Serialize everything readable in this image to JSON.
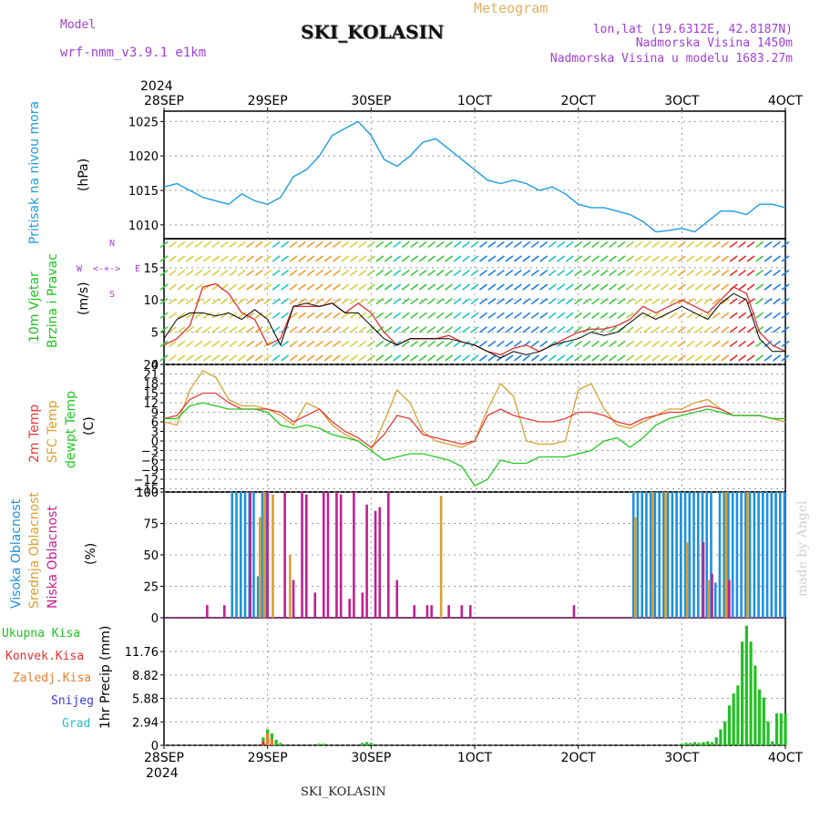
{
  "header": {
    "model_label": "Model",
    "model_name": "wrf-nmm_v3.9.1 e1km",
    "title": "SKI_KOLASIN",
    "meteogram_label": "Meteogram",
    "lonlat": "lon,lat (19.6312E, 42.8187N)",
    "altitude": "Nadmorska Visina 1450m",
    "model_altitude": "Nadmorska Visina u modelu 1683.27m",
    "watermark": "made by Angel",
    "footer": "SKI_KOLASIN"
  },
  "colors": {
    "pressure": "#1e9be0",
    "wind_speed_line": "#000000",
    "gust": "#e03030",
    "temp2m": "#e83a3a",
    "sfc_temp": "#d8a030",
    "dewpt": "#22c822",
    "high_cloud": "#1e90e0",
    "mid_cloud": "#d8a030",
    "low_cloud": "#c02090",
    "total_precip": "#22c022",
    "conv_precip": "#e83030",
    "frz_precip": "#e88030",
    "snow": "#3a3ae0",
    "graupel": "#20c0c0"
  },
  "axis": {
    "year_top": "2024",
    "year_bottom": "2024",
    "date_ticks": [
      "28SEP",
      "29SEP",
      "30SEP",
      "1OCT",
      "2OCT",
      "3OCT",
      "4OCT"
    ]
  },
  "chart_data": [
    {
      "type": "line",
      "panel": "pressure",
      "ylabel_left": "Pritisak na nivou mora",
      "ylabel_unit": "(hPa)",
      "yticks": [
        1010,
        1015,
        1020,
        1025
      ],
      "ylim": [
        1008,
        1026.5
      ],
      "xlim_hours": [
        0,
        144
      ],
      "grid": true,
      "series": [
        {
          "name": "Pritisak na nivou mora",
          "x": [
            0,
            3,
            6,
            9,
            12,
            15,
            18,
            21,
            24,
            27,
            30,
            33,
            36,
            39,
            42,
            45,
            48,
            51,
            54,
            57,
            60,
            63,
            66,
            69,
            72,
            75,
            78,
            81,
            84,
            87,
            90,
            93,
            96,
            99,
            102,
            105,
            108,
            111,
            114,
            117,
            120,
            123,
            126,
            129,
            132,
            135,
            138,
            141,
            144
          ],
          "y": [
            1015.5,
            1016.0,
            1015.0,
            1014.0,
            1013.5,
            1013.0,
            1014.5,
            1013.5,
            1013.0,
            1014.0,
            1017.0,
            1018.0,
            1020.0,
            1023.0,
            1024.0,
            1025.0,
            1023.0,
            1019.5,
            1018.5,
            1020.0,
            1022.0,
            1022.5,
            1021.0,
            1019.5,
            1018.0,
            1016.5,
            1016.0,
            1016.5,
            1016.0,
            1015.0,
            1015.5,
            1014.5,
            1013.0,
            1012.5,
            1012.5,
            1012.0,
            1011.5,
            1010.5,
            1009.0,
            1009.2,
            1009.5,
            1009.0,
            1010.5,
            1012.0,
            1012.0,
            1011.5,
            1013.0,
            1013.0,
            1012.5
          ]
        }
      ]
    },
    {
      "type": "line",
      "panel": "wind",
      "ylabel_left": [
        "10m Vjetar",
        "Brzina i Pravac"
      ],
      "ylabel_unit": "(m/s)",
      "direction_legend": [
        "N",
        "E",
        "S",
        "W"
      ],
      "yticks": [
        0,
        5,
        10,
        15
      ],
      "ylim": [
        0,
        19.5
      ],
      "xlim_hours": [
        0,
        144
      ],
      "grid": true,
      "series": [
        {
          "name": "10m Vjetar",
          "x": [
            0,
            3,
            6,
            9,
            12,
            15,
            18,
            21,
            24,
            27,
            30,
            33,
            36,
            39,
            42,
            45,
            48,
            51,
            54,
            57,
            60,
            63,
            66,
            69,
            72,
            75,
            78,
            81,
            84,
            87,
            90,
            93,
            96,
            99,
            102,
            105,
            108,
            111,
            114,
            117,
            120,
            123,
            126,
            129,
            132,
            135,
            138,
            141,
            144
          ],
          "y": [
            4,
            7,
            8,
            8,
            7.5,
            8,
            7,
            8.5,
            7,
            3,
            9,
            9.5,
            9,
            9.5,
            8,
            8,
            6,
            4,
            3,
            4,
            4,
            4,
            4,
            3.5,
            3,
            2,
            1,
            2,
            1.5,
            2,
            3,
            3.5,
            4,
            5,
            4.5,
            5,
            6.5,
            8,
            7,
            8,
            9,
            8,
            7,
            9.5,
            11,
            10,
            4,
            2,
            2
          ]
        },
        {
          "name": "Brzina i Pravac",
          "x": [
            0,
            3,
            6,
            9,
            12,
            15,
            18,
            21,
            24,
            27,
            30,
            33,
            36,
            39,
            42,
            45,
            48,
            51,
            54,
            57,
            60,
            63,
            66,
            69,
            72,
            75,
            78,
            81,
            84,
            87,
            90,
            93,
            96,
            99,
            102,
            105,
            108,
            111,
            114,
            117,
            120,
            123,
            126,
            129,
            132,
            135,
            138,
            141,
            144
          ],
          "y": [
            3,
            4,
            6,
            12,
            12.5,
            11,
            8,
            7,
            3,
            4,
            9,
            9,
            9,
            9.5,
            8,
            9.5,
            8,
            5,
            3,
            4,
            4,
            4,
            4.5,
            3.5,
            3,
            2,
            1.5,
            2.5,
            3,
            2,
            3,
            4,
            5,
            5.5,
            5.5,
            6,
            7,
            9,
            8,
            9,
            10,
            9,
            8,
            10,
            12,
            11,
            5,
            3,
            2
          ]
        }
      ]
    },
    {
      "type": "line",
      "panel": "temperature",
      "ylabels_left": [
        "2m Temp",
        "SFC Temp",
        "dewpt Temp"
      ],
      "ylabel_unit": "(C)",
      "yticks": [
        -15,
        -12,
        -9,
        -6,
        -3,
        0,
        3,
        6,
        9,
        12,
        15,
        18,
        21,
        24
      ],
      "ylim": [
        -16,
        24
      ],
      "xlim_hours": [
        0,
        144
      ],
      "grid": true,
      "series": [
        {
          "name": "2m Temp",
          "x": [
            0,
            3,
            6,
            9,
            12,
            15,
            18,
            21,
            24,
            27,
            30,
            33,
            36,
            39,
            42,
            45,
            48,
            51,
            54,
            57,
            60,
            63,
            66,
            69,
            72,
            75,
            78,
            81,
            84,
            87,
            90,
            93,
            96,
            99,
            102,
            105,
            108,
            111,
            114,
            117,
            120,
            123,
            126,
            129,
            132,
            135,
            138,
            141,
            144
          ],
          "y": [
            7,
            8,
            13,
            15,
            15,
            12,
            10,
            10,
            10,
            9,
            6,
            8,
            10,
            6,
            3,
            1,
            -2,
            2,
            8,
            7,
            2,
            1,
            0,
            -1,
            0,
            8,
            10,
            8,
            7,
            6,
            6,
            7,
            9,
            9,
            8,
            6,
            5,
            7,
            8,
            9,
            9,
            10,
            11,
            10,
            8,
            8,
            8,
            7,
            7
          ]
        },
        {
          "name": "SFC Temp",
          "x": [
            0,
            3,
            6,
            9,
            12,
            15,
            18,
            21,
            24,
            27,
            30,
            33,
            36,
            39,
            42,
            45,
            48,
            51,
            54,
            57,
            60,
            63,
            66,
            69,
            72,
            75,
            78,
            81,
            84,
            87,
            90,
            93,
            96,
            99,
            102,
            105,
            108,
            111,
            114,
            117,
            120,
            123,
            126,
            129,
            132,
            135,
            138,
            141,
            144
          ],
          "y": [
            6,
            5,
            16,
            22,
            20,
            13,
            11,
            11,
            10,
            8,
            5,
            12,
            10,
            5,
            2,
            0,
            -3,
            6,
            16,
            12,
            3,
            0,
            -1,
            -2,
            0,
            10,
            18,
            14,
            0,
            -1,
            -1,
            0,
            16,
            18,
            10,
            5,
            4,
            6,
            8,
            10,
            10,
            12,
            13,
            10,
            8,
            8,
            8,
            7,
            6
          ]
        },
        {
          "name": "dewpt Temp",
          "x": [
            0,
            3,
            6,
            9,
            12,
            15,
            18,
            21,
            24,
            27,
            30,
            33,
            36,
            39,
            42,
            45,
            48,
            51,
            54,
            57,
            60,
            63,
            66,
            69,
            72,
            75,
            78,
            81,
            84,
            87,
            90,
            93,
            96,
            99,
            102,
            105,
            108,
            111,
            114,
            117,
            120,
            123,
            126,
            129,
            132,
            135,
            138,
            141,
            144
          ],
          "y": [
            7,
            7,
            11,
            12,
            11,
            10,
            10,
            10,
            9,
            5,
            4,
            5,
            4,
            2,
            1,
            0,
            -3,
            -6,
            -5,
            -4,
            -4,
            -5,
            -6,
            -8,
            -14,
            -12,
            -6,
            -7,
            -7,
            -5,
            -5,
            -5,
            -4,
            -3,
            0,
            1,
            -2,
            1,
            5,
            7,
            8,
            9,
            10,
            9,
            8,
            8,
            8,
            7,
            7
          ]
        }
      ]
    },
    {
      "type": "bar",
      "panel": "cloud",
      "ylabels_left": [
        "Visoka Oblacnost",
        "Srednja Oblacnost",
        "Niska Oblacnost"
      ],
      "ylabel_unit": "(%)",
      "yticks": [
        0,
        25,
        50,
        75,
        100
      ],
      "ylim": [
        0,
        100
      ],
      "xlim_hours": [
        0,
        144
      ],
      "grid": true,
      "series": [
        {
          "name": "Visoka Oblacnost",
          "x": [
            16,
            17,
            18,
            19,
            20,
            21,
            22,
            23,
            24,
            109,
            110,
            111,
            112,
            113,
            114,
            115,
            116,
            117,
            118,
            119,
            120,
            121,
            122,
            123,
            124,
            125,
            126,
            127,
            128,
            129,
            130,
            131,
            132,
            133,
            134,
            135,
            136,
            137,
            138,
            139,
            140,
            141,
            142,
            143,
            144
          ],
          "y": [
            100,
            100,
            100,
            100,
            100,
            100,
            33,
            100,
            100,
            100,
            100,
            100,
            100,
            100,
            100,
            100,
            100,
            100,
            100,
            100,
            100,
            100,
            100,
            100,
            100,
            100,
            100,
            100,
            28,
            100,
            100,
            100,
            100,
            100,
            100,
            100,
            100,
            100,
            100,
            100,
            100,
            100,
            100,
            100,
            100
          ]
        },
        {
          "name": "Srednja Oblacnost",
          "x": [
            22,
            23,
            25,
            29,
            64,
            109,
            113,
            116,
            121,
            126,
            130,
            135
          ],
          "y": [
            80,
            100,
            98,
            50,
            97,
            80,
            100,
            100,
            60,
            30,
            100,
            100
          ]
        },
        {
          "name": "Niska Oblacnost",
          "x": [
            10,
            14,
            20,
            24,
            28,
            30,
            32,
            33,
            35,
            37,
            38,
            40,
            41,
            43,
            44,
            46,
            47,
            49,
            50,
            52,
            54,
            58,
            61,
            62,
            66,
            69,
            71,
            95,
            125,
            127,
            131
          ],
          "y": [
            10,
            10,
            100,
            100,
            100,
            30,
            100,
            98,
            20,
            100,
            100,
            100,
            98,
            15,
            100,
            20,
            90,
            85,
            88,
            100,
            30,
            10,
            10,
            10,
            10,
            10,
            10,
            10,
            60,
            35,
            30
          ]
        }
      ]
    },
    {
      "type": "bar",
      "panel": "precip",
      "ylabels_left": [
        "Ukupna Kisa",
        "Konvek.Kisa",
        "Zaledj.Kisa",
        "Snijeg",
        "Grad"
      ],
      "ylabel_unit": "1hr Precip (mm)",
      "yticks": [
        0,
        2.94,
        5.88,
        8.82,
        11.76
      ],
      "ylim": [
        0,
        16
      ],
      "xlim_hours": [
        0,
        144
      ],
      "grid": true,
      "series": [
        {
          "name": "Ukupna Kisa",
          "x": [
            23,
            24,
            25,
            26,
            27,
            36,
            37,
            46,
            47,
            48,
            120,
            121,
            122,
            123,
            124,
            125,
            126,
            127,
            128,
            129,
            130,
            131,
            132,
            133,
            134,
            135,
            136,
            137,
            138,
            139,
            140,
            141,
            142,
            143,
            144
          ],
          "y": [
            1.0,
            2.0,
            1.5,
            0.7,
            0.3,
            0.2,
            0.2,
            0.3,
            0.4,
            0.3,
            0.2,
            0.3,
            0.3,
            0.4,
            0.3,
            0.4,
            0.5,
            0.4,
            1.0,
            2.0,
            3.0,
            5.0,
            6.5,
            7.5,
            13.0,
            15.0,
            13.0,
            10.0,
            7.0,
            6.0,
            3.0,
            0.5,
            4.0,
            4.0,
            4.0
          ]
        },
        {
          "name": "Konvek.Kisa",
          "x": [
            23,
            24,
            25
          ],
          "y": [
            0.5,
            1.0,
            0.4
          ]
        },
        {
          "name": "Zaledj.Kisa",
          "x": [
            24,
            25
          ],
          "y": [
            1.5,
            0.8
          ]
        }
      ]
    }
  ]
}
